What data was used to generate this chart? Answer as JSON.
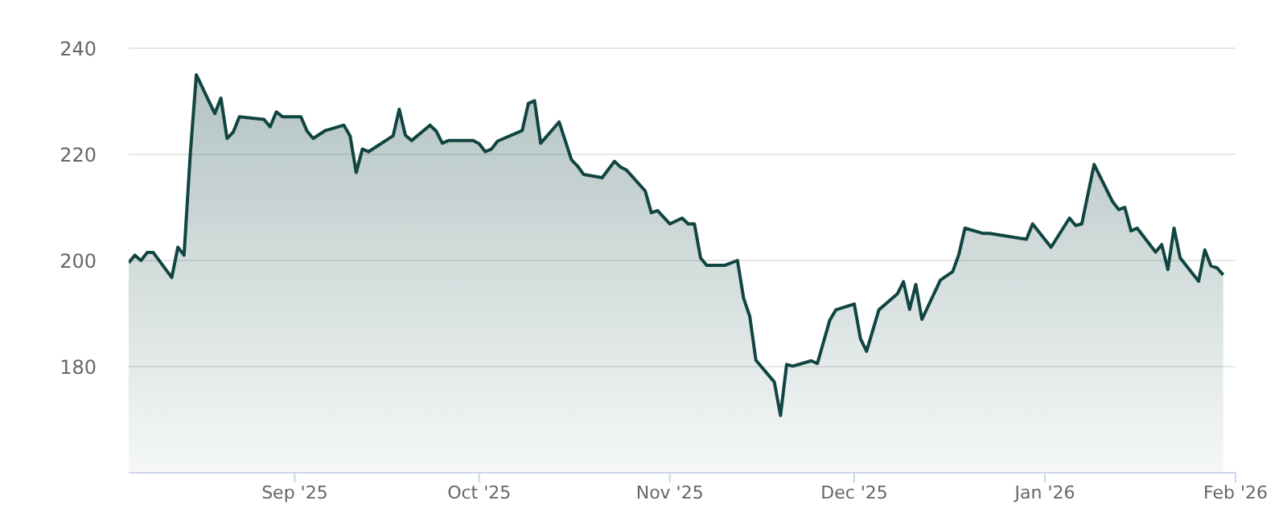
{
  "chart_data": {
    "type": "area",
    "x": [
      "2025-08-05",
      "2025-08-06",
      "2025-08-07",
      "2025-08-08",
      "2025-08-09",
      "2025-08-12",
      "2025-08-13",
      "2025-08-14",
      "2025-08-15",
      "2025-08-16",
      "2025-08-19",
      "2025-08-20",
      "2025-08-21",
      "2025-08-22",
      "2025-08-23",
      "2025-08-27",
      "2025-08-28",
      "2025-08-29",
      "2025-08-30",
      "2025-09-02",
      "2025-09-03",
      "2025-09-04",
      "2025-09-06",
      "2025-09-09",
      "2025-09-10",
      "2025-09-11",
      "2025-09-12",
      "2025-09-13",
      "2025-09-17",
      "2025-09-18",
      "2025-09-19",
      "2025-09-20",
      "2025-09-23",
      "2025-09-24",
      "2025-09-25",
      "2025-09-26",
      "2025-09-30",
      "2025-10-01",
      "2025-10-02",
      "2025-10-03",
      "2025-10-04",
      "2025-10-08",
      "2025-10-09",
      "2025-10-10",
      "2025-10-11",
      "2025-10-14",
      "2025-10-16",
      "2025-10-17",
      "2025-10-18",
      "2025-10-21",
      "2025-10-23",
      "2025-10-24",
      "2025-10-25",
      "2025-10-28",
      "2025-10-29",
      "2025-10-30",
      "2025-11-01",
      "2025-11-03",
      "2025-11-04",
      "2025-11-05",
      "2025-11-06",
      "2025-11-07",
      "2025-11-10",
      "2025-11-12",
      "2025-11-13",
      "2025-11-14",
      "2025-11-15",
      "2025-11-18",
      "2025-11-19",
      "2025-11-20",
      "2025-11-21",
      "2025-11-24",
      "2025-11-25",
      "2025-11-27",
      "2025-11-28",
      "2025-12-01",
      "2025-12-02",
      "2025-12-03",
      "2025-12-05",
      "2025-12-08",
      "2025-12-09",
      "2025-12-10",
      "2025-12-11",
      "2025-12-12",
      "2025-12-15",
      "2025-12-17",
      "2025-12-18",
      "2025-12-19",
      "2025-12-22",
      "2025-12-23",
      "2025-12-29",
      "2025-12-30",
      "2026-01-02",
      "2026-01-05",
      "2026-01-06",
      "2026-01-07",
      "2026-01-09",
      "2026-01-12",
      "2026-01-13",
      "2026-01-14",
      "2026-01-15",
      "2026-01-16",
      "2026-01-19",
      "2026-01-20",
      "2026-01-21",
      "2026-01-22",
      "2026-01-23",
      "2026-01-26",
      "2026-01-27",
      "2026-01-28",
      "2026-01-29",
      "2026-01-30"
    ],
    "series": [
      {
        "color": "#104541",
        "values": [
          199.6,
          201.0,
          200.0,
          201.5,
          201.5,
          196.8,
          202.5,
          201.0,
          219.8,
          235.0,
          227.7,
          230.6,
          223.0,
          224.2,
          227.1,
          226.6,
          225.2,
          228.0,
          227.1,
          227.1,
          224.4,
          223.0,
          224.5,
          225.5,
          223.5,
          216.6,
          221.0,
          220.5,
          223.5,
          228.5,
          223.6,
          222.6,
          225.5,
          224.4,
          222.1,
          222.6,
          222.6,
          222.0,
          220.5,
          221.0,
          222.5,
          224.5,
          229.6,
          230.1,
          222.1,
          226.1,
          219.0,
          217.8,
          216.2,
          215.6,
          218.7,
          217.6,
          217.0,
          213.1,
          209.0,
          209.4,
          206.9,
          208.0,
          206.9,
          206.9,
          200.5,
          199.1,
          199.1,
          200.0,
          192.9,
          189.5,
          181.2,
          177.1,
          170.8,
          180.4,
          180.1,
          181.1,
          180.6,
          188.7,
          190.7,
          191.8,
          185.3,
          182.9,
          190.7,
          193.7,
          196.0,
          190.8,
          195.5,
          188.9,
          196.3,
          197.9,
          201.1,
          206.1,
          205.1,
          205.1,
          204.0,
          206.9,
          202.5,
          208.0,
          206.6,
          206.9,
          218.1,
          211.1,
          209.6,
          210.0,
          205.6,
          206.1,
          201.6,
          203.0,
          198.3,
          206.1,
          200.5,
          196.1,
          202.0,
          199.0,
          198.6,
          197.3
        ]
      }
    ],
    "xlim": [
      "2025-08-05",
      "2026-02-01"
    ],
    "xticks": [
      {
        "value": "2025-09-01",
        "label": "Sep '25"
      },
      {
        "value": "2025-10-01",
        "label": "Oct '25"
      },
      {
        "value": "2025-11-01",
        "label": "Nov '25"
      },
      {
        "value": "2025-12-01",
        "label": "Dec '25"
      },
      {
        "value": "2026-01-01",
        "label": "Jan '26"
      },
      {
        "value": "2026-02-01",
        "label": "Feb '26"
      }
    ],
    "ylim": [
      160,
      240
    ],
    "yticks": [
      180,
      200,
      220,
      240
    ],
    "grid": "y"
  }
}
